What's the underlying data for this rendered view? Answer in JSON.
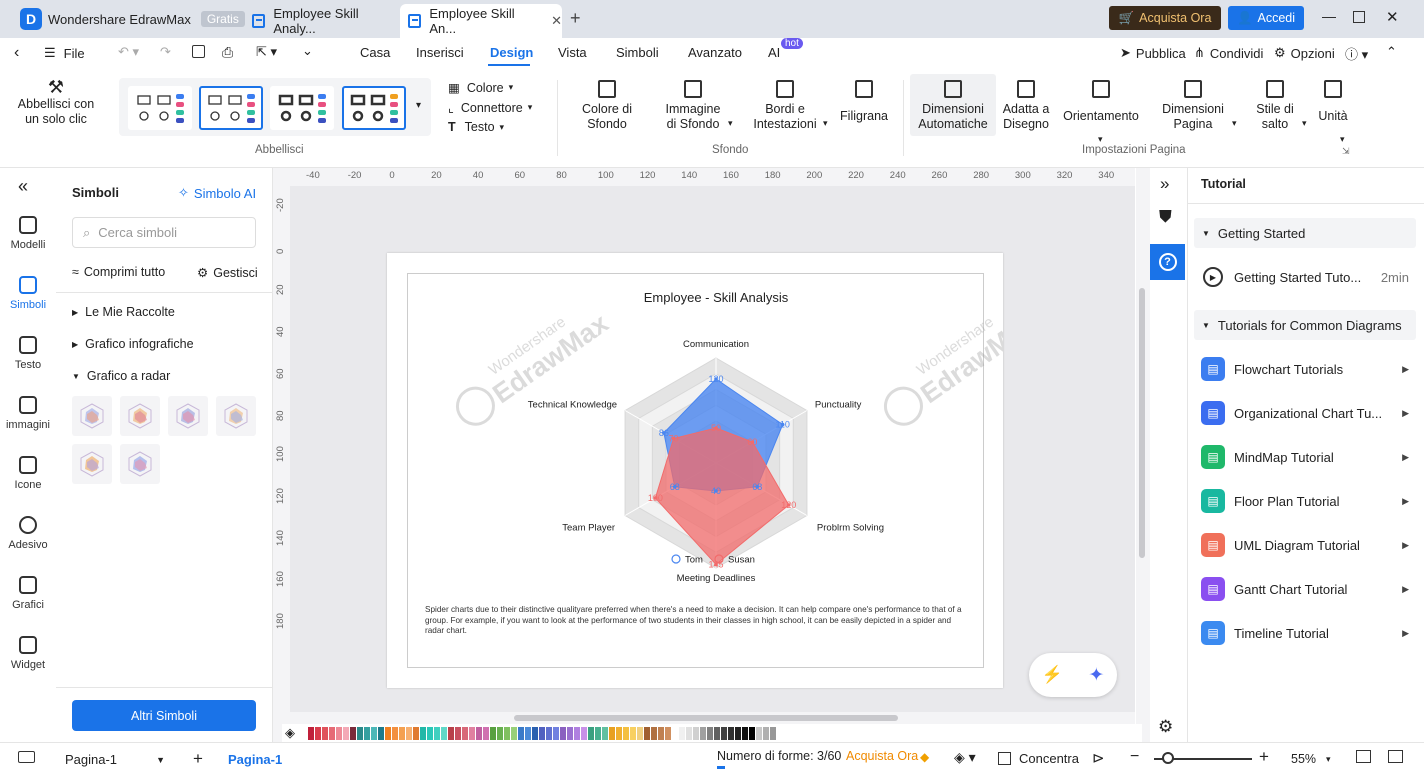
{
  "titlebar": {
    "app_name": "Wondershare EdrawMax",
    "app_badge": "Gratis",
    "tabs": [
      {
        "label": "Employee Skill Analy..."
      },
      {
        "label": "Employee Skill An..."
      }
    ],
    "buy_label": "Acquista Ora",
    "login_label": "Accedi"
  },
  "menubar": {
    "file": "File",
    "items": [
      "Casa",
      "Inserisci",
      "Design",
      "Vista",
      "Simboli",
      "Avanzato",
      "AI"
    ],
    "active": "Design",
    "ai_badge": "hot",
    "publish": "Pubblica",
    "share": "Condividi",
    "options": "Opzioni"
  },
  "ribbon": {
    "beautify": "Abbellisci con\nun solo clic",
    "color": "Colore",
    "connector": "Connettore",
    "text": "Testo",
    "bg_color": "Colore di\nSfondo",
    "bg_image": "Immagine\ndi Sfondo",
    "borders": "Bordi e\nIntestazioni",
    "watermark": "Filigrana",
    "auto_size": "Dimensioni\nAutomatiche",
    "fit": "Adatta a\nDisegno",
    "orientation": "Orientamento",
    "page_size": "Dimensioni\nPagina",
    "jump_style": "Stile di\nsalto",
    "unit": "Unità",
    "groups": [
      "Abbellisci",
      "Sfondo",
      "Impostazioni Pagina"
    ]
  },
  "rail": [
    "Modelli",
    "Simboli",
    "Testo",
    "immagini",
    "Icone",
    "Adesivo",
    "Grafici",
    "Widget"
  ],
  "symbols": {
    "title": "Simboli",
    "ai": "Simbolo AI",
    "search_placeholder": "Cerca simboli",
    "collapse": "Comprimi tutto",
    "manage": "Gestisci",
    "sections": [
      "Le Mie Raccolte",
      "Grafico infografiche",
      "Grafico a radar"
    ],
    "more": "Altri Simboli"
  },
  "ruler": {
    "h": [
      "-40",
      "-20",
      "0",
      "20",
      "40",
      "60",
      "80",
      "100",
      "120",
      "140",
      "160",
      "180",
      "200",
      "220",
      "240",
      "260",
      "280",
      "300",
      "320",
      "340"
    ],
    "v": [
      "-20",
      "0",
      "20",
      "40",
      "60",
      "80",
      "100",
      "120",
      "140",
      "160",
      "180"
    ]
  },
  "watermark_text": "Wondershare\nEdrawMax",
  "chart_data": {
    "type": "radar",
    "title": "Employee - Skill Analysis",
    "axes": [
      "Communication",
      "Punctuality",
      "Problrm Solving",
      "Meeting Deadlines",
      "Team Player",
      "Technical Knowledge"
    ],
    "series": [
      {
        "name": "Tom",
        "color": "#4a86f0",
        "values": [
          120,
          110,
          68,
          40,
          68,
          86
        ]
      },
      {
        "name": "Susan",
        "color": "#f26b6b",
        "values": [
          50,
          60,
          120,
          145,
          100,
          70
        ]
      }
    ],
    "max": 150,
    "legend": "bottom"
  },
  "description": "Spider charts due to their distinctive qualityare preferred when there's a need to make a decision. It can help compare one's performance to that of a group.  For example, if you want to look at the performance of two students in their classes in high school, it can be easily depicted in a spider and radar chart.",
  "tutorial": {
    "title": "Tutorial",
    "getting_started": "Getting Started",
    "gs_item": "Getting Started Tuto...",
    "gs_duration": "2min",
    "common": "Tutorials for Common Diagrams",
    "items": [
      {
        "label": "Flowchart Tutorials",
        "color": "#3b7df0"
      },
      {
        "label": "Organizational Chart Tu...",
        "color": "#3b6df0"
      },
      {
        "label": "MindMap Tutorial",
        "color": "#1fb86a"
      },
      {
        "label": "Floor Plan Tutorial",
        "color": "#19b8a0"
      },
      {
        "label": "UML Diagram Tutorial",
        "color": "#f0705a"
      },
      {
        "label": "Gantt Chart Tutorial",
        "color": "#8a4ff0"
      },
      {
        "label": "Timeline Tutorial",
        "color": "#3b8af0"
      }
    ]
  },
  "status": {
    "page_select": "Pagina-1",
    "page_tab": "Pagina-1",
    "shapes": "Numero di forme: 3/60",
    "buy": "Acquista Ora",
    "focus": "Concentra",
    "zoom": "55%"
  },
  "palette": [
    "#c0203a",
    "#d93b4b",
    "#e0525b",
    "#e66a75",
    "#ee8a96",
    "#f4a9b6",
    "#7a2a3a",
    "#2a8a8a",
    "#35a0a0",
    "#4cb8b8",
    "#1e7a8a",
    "#f08020",
    "#f39040",
    "#f4a050",
    "#f7b070",
    "#e07a30",
    "#22b8a8",
    "#2ac8b8",
    "#40d0c0",
    "#60d8c8",
    "#b8404a",
    "#c85060",
    "#d86878",
    "#e080a0",
    "#c060a0",
    "#d070b0",
    "#58a040",
    "#68b050",
    "#80c060",
    "#98d078",
    "#3a7ac8",
    "#4a8ad8",
    "#2a60b0",
    "#5060c0",
    "#6070d0",
    "#7080e0",
    "#8a60c0",
    "#9a70d0",
    "#b080e0",
    "#c890e8",
    "#3aa080",
    "#48b090",
    "#60c0a0",
    "#e8a020",
    "#f0b030",
    "#f4c040",
    "#f8d060",
    "#f0d080",
    "#a06030",
    "#b07040",
    "#c08050",
    "#d09060",
    "#ffffff",
    "#f0f0f0",
    "#e0e0e0",
    "#d0d0d0",
    "#a0a0a0",
    "#808080",
    "#606060",
    "#404040",
    "#303030",
    "#202020",
    "#101010",
    "#000000",
    "#c8c8c8",
    "#b0b0b0",
    "#989898"
  ]
}
